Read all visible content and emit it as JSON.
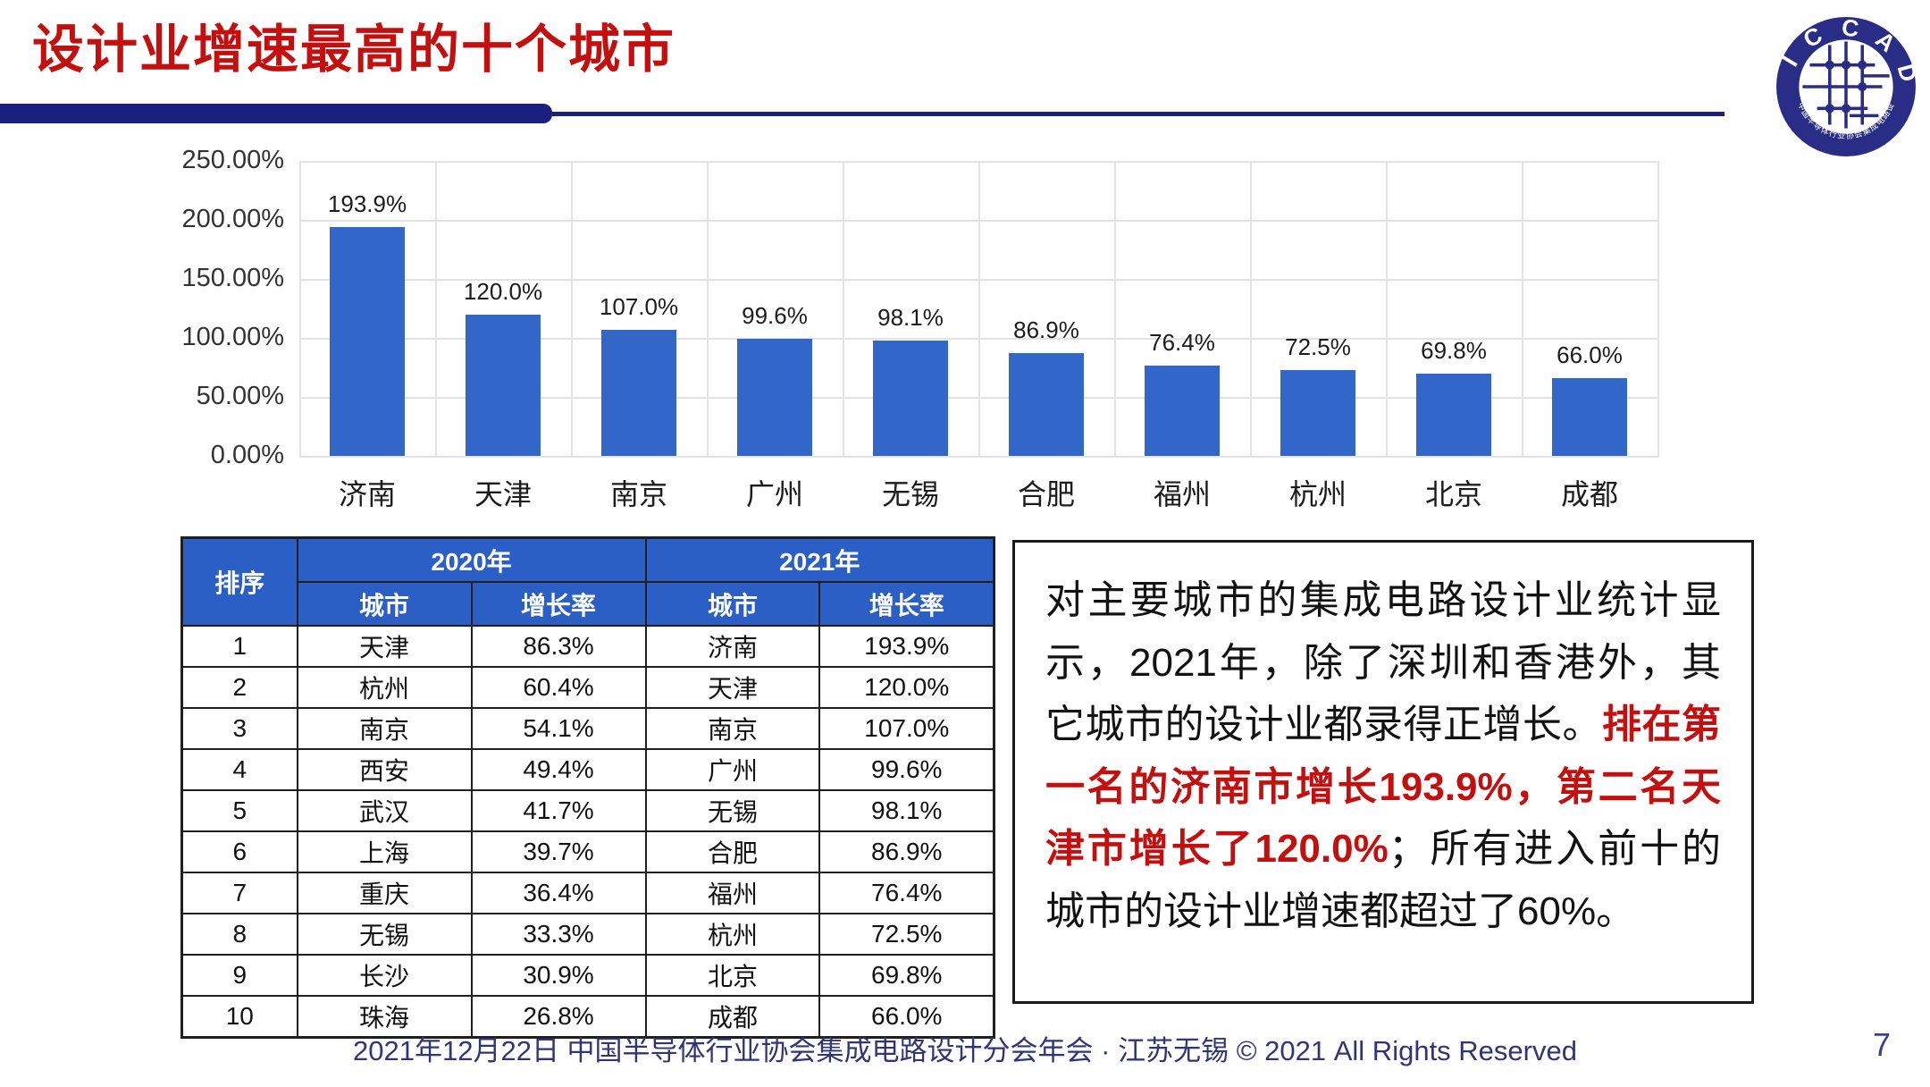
{
  "slide": {
    "title": "设计业增速最高的十个城市",
    "footer": "2021年12月22日 中国半导体行业协会集成电路设计分会年会 · 江苏无锡 © 2021 All Rights Reserved",
    "page_number": "7"
  },
  "logo": {
    "name": "ICCAD",
    "arc_text": "I C C A D",
    "ring_subtext": "中国半导体行业协会集成电路设计分会"
  },
  "colors": {
    "title_red": "#C40F0F",
    "accent_navy": "#1B1F7E",
    "bar_blue": "#3266C8",
    "table_header_blue": "#2C5FC5",
    "footer_navy": "#2F3575"
  },
  "chart_data": {
    "type": "bar",
    "title": "",
    "xlabel": "",
    "ylabel": "",
    "categories": [
      "济南",
      "天津",
      "南京",
      "广州",
      "无锡",
      "合肥",
      "福州",
      "杭州",
      "北京",
      "成都"
    ],
    "values": [
      193.9,
      120.0,
      107.0,
      99.6,
      98.1,
      86.9,
      76.4,
      72.5,
      69.8,
      66.0
    ],
    "bar_labels": [
      "193.9%",
      "120.0%",
      "107.0%",
      "99.6%",
      "98.1%",
      "86.9%",
      "76.4%",
      "72.5%",
      "69.8%",
      "66.0%"
    ],
    "ylim": [
      0,
      250
    ],
    "ytick_values": [
      0,
      50,
      100,
      150,
      200,
      250
    ],
    "ytick_labels": [
      "0.00%",
      "50.00%",
      "100.00%",
      "150.00%",
      "200.00%",
      "250.00%"
    ],
    "grid": "both",
    "legend": "none",
    "bar_color": "#3266C8"
  },
  "table": {
    "rank_header": "排序",
    "groups": [
      {
        "label": "2020年"
      },
      {
        "label": "2021年"
      }
    ],
    "sub_headers": [
      "城市",
      "增长率"
    ],
    "rows": [
      {
        "rank": "1",
        "city_2020": "天津",
        "rate_2020": "86.3%",
        "city_2021": "济南",
        "rate_2021": "193.9%"
      },
      {
        "rank": "2",
        "city_2020": "杭州",
        "rate_2020": "60.4%",
        "city_2021": "天津",
        "rate_2021": "120.0%"
      },
      {
        "rank": "3",
        "city_2020": "南京",
        "rate_2020": "54.1%",
        "city_2021": "南京",
        "rate_2021": "107.0%"
      },
      {
        "rank": "4",
        "city_2020": "西安",
        "rate_2020": "49.4%",
        "city_2021": "广州",
        "rate_2021": "99.6%"
      },
      {
        "rank": "5",
        "city_2020": "武汉",
        "rate_2020": "41.7%",
        "city_2021": "无锡",
        "rate_2021": "98.1%"
      },
      {
        "rank": "6",
        "city_2020": "上海",
        "rate_2020": "39.7%",
        "city_2021": "合肥",
        "rate_2021": "86.9%"
      },
      {
        "rank": "7",
        "city_2020": "重庆",
        "rate_2020": "36.4%",
        "city_2021": "福州",
        "rate_2021": "76.4%"
      },
      {
        "rank": "8",
        "city_2020": "无锡",
        "rate_2020": "33.3%",
        "city_2021": "杭州",
        "rate_2021": "72.5%"
      },
      {
        "rank": "9",
        "city_2020": "长沙",
        "rate_2020": "30.9%",
        "city_2021": "北京",
        "rate_2021": "69.8%"
      },
      {
        "rank": "10",
        "city_2020": "珠海",
        "rate_2020": "26.8%",
        "city_2021": "成都",
        "rate_2021": "66.0%"
      }
    ]
  },
  "note": {
    "black_1": "对主要城市的集成电路设计业统计显示，2021年，除了深圳和香港外，其它城市的设计业都录得正增长。",
    "red": "排在第一名的济南市增长193.9%，第二名天津市增长了120.0%",
    "black_2": "；所有进入前十的城市的设计业增速都超过了60%。"
  }
}
